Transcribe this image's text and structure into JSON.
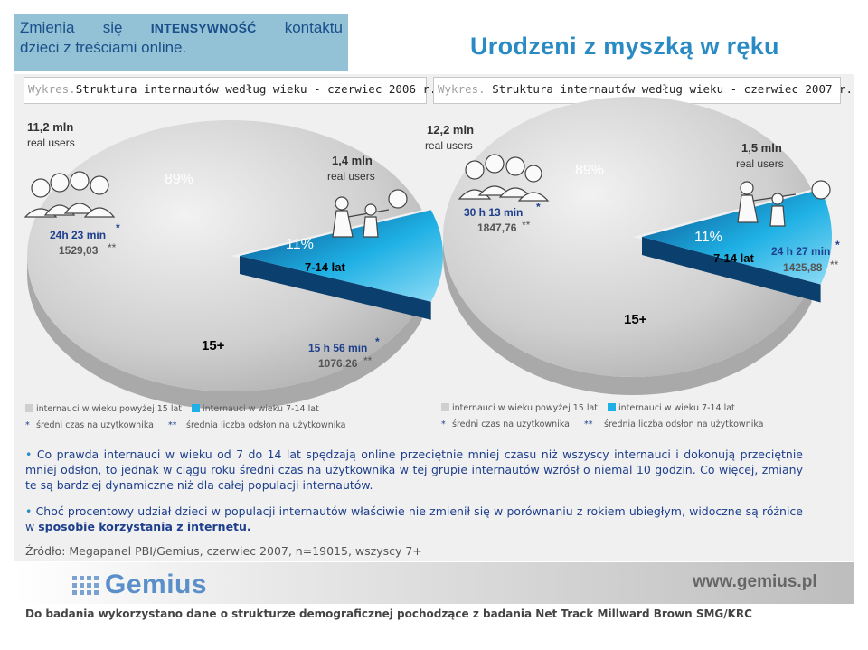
{
  "header": {
    "subtitle_left_1": "Zmienia",
    "subtitle_left_2": "się",
    "subtitle_emph": "INTENSYWNOŚĆ",
    "subtitle_left_3": "kontaktu",
    "subtitle_line2": "dzieci z treściami online.",
    "main_title": "Urodzeni z myszką w ręku"
  },
  "colors": {
    "adult_slice": "#cfcfcf",
    "kids_slice": "#1eb0e4",
    "text_blue": "#1e3f8c",
    "accent": "#2a8bc4"
  },
  "chart_data": [
    {
      "type": "pie",
      "box_label": "Wykres.",
      "title": "Struktura internautów według wieku - czerwiec 2006 r.",
      "slices": [
        {
          "name": "internauci w wieku powyżej 15 lat",
          "group": "15+",
          "value": 89,
          "label": "89%",
          "users": "11,2 mln",
          "users_unit": "real users",
          "time": "24h 23 min",
          "pageviews": "1529,03"
        },
        {
          "name": "internauci w wieku 7-14 lat",
          "group": "7-14 lat",
          "value": 11,
          "label": "11%",
          "users": "1,4 mln",
          "users_unit": "real users",
          "time": "15 h 56 min",
          "pageviews": "1076,26"
        }
      ]
    },
    {
      "type": "pie",
      "box_label": "Wykres.",
      "title": "Struktura internautów według wieku - czerwiec 2007 r.",
      "slices": [
        {
          "name": "internauci w wieku powyżej 15 lat",
          "group": "15+",
          "value": 89,
          "label": "89%",
          "users": "12,2 mln",
          "users_unit": "real users",
          "time": "30 h 13 min",
          "pageviews": "1847,76"
        },
        {
          "name": "internauci w wieku 7-14 lat",
          "group": "7-14 lat",
          "value": 11,
          "label": "11%",
          "users": "1,5 mln",
          "users_unit": "real users",
          "time": "24 h 27 min",
          "pageviews": "1425,88"
        }
      ]
    }
  ],
  "legend": {
    "adults": "internauci w wieku powyżej 15 lat",
    "kids": "internauci w wieku 7-14 lat",
    "star": "*",
    "star_text": "średni czas na użytkownika",
    "dstar": "**",
    "dstar_text": "średnia liczba odsłon na użytkownika"
  },
  "bullets": {
    "b1": "Co prawda internauci w wieku od 7 do 14 lat spędzają online przeciętnie mniej czasu niż wszyscy internauci i dokonują przeciętnie mniej odsłon, to jednak w ciągu roku średni czas na użytkownika w tej grupie internautów wzrósł o niemal 10 godzin. Co więcej, zmiany te są bardziej dynamiczne niż dla całej populacji internautów.",
    "b2_start": "Choć procentowy udział dzieci w populacji internautów właściwie nie zmienił się w porównaniu z rokiem ubiegłym, widoczne są różnice w ",
    "b2_bold": "sposobie korzystania z internetu."
  },
  "source": "Źródło: Megapanel PBI/Gemius, czerwiec 2007, n=19015, wszyscy 7+",
  "footer": {
    "logo_text": "Gemius",
    "website": "www.gemius.pl",
    "note": "Do badania wykorzystano dane o strukturze demograficznej pochodzące z badania Net Track Millward Brown SMG/KRC"
  }
}
